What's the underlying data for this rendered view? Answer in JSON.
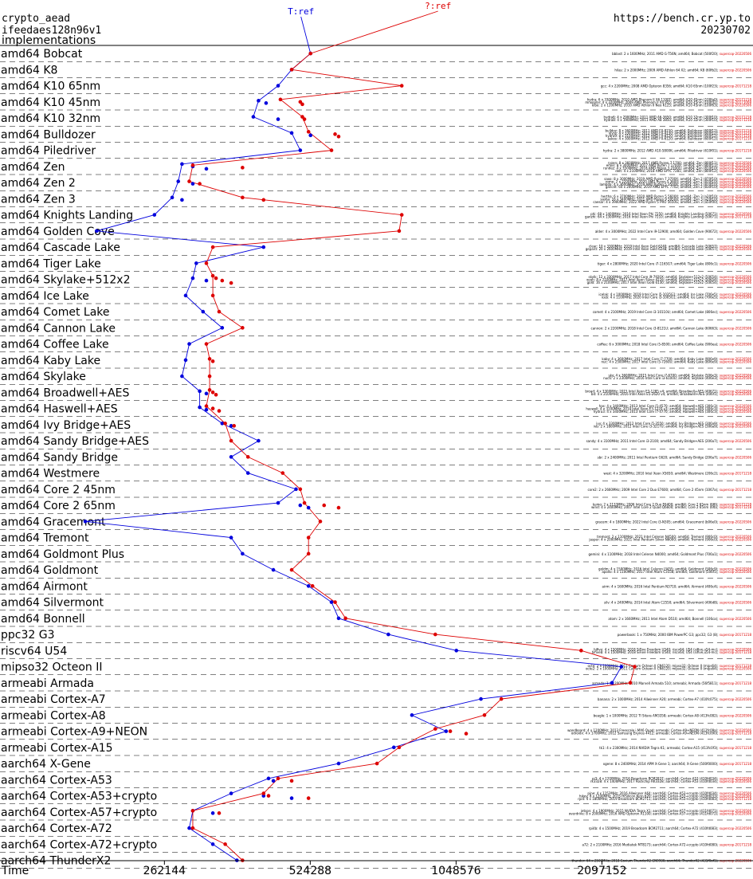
{
  "header": {
    "line1": "crypto_aead",
    "line2": "ifeedaes128n96v1",
    "line3": "implementations",
    "url": "https://bench.cr.yp.to",
    "date": "20230702"
  },
  "colors": {
    "blue": "#0000dd",
    "red": "#dd0000",
    "text": "#000000"
  },
  "chart_data": {
    "type": "line",
    "xlabel": "Time",
    "x_scale": "log2",
    "xlim": [
      120000,
      4300000
    ],
    "ticks": [
      262144,
      524288,
      1048576,
      2097152
    ],
    "tick_labels": [
      "262144",
      "524288",
      "1048576",
      "2097152"
    ],
    "series": [
      {
        "name": "T:ref",
        "color": "#0000dd"
      },
      {
        "name": "?:ref",
        "color": "#dd0000"
      }
    ],
    "categories": [
      {
        "label": "amd64 Bobcat",
        "blue": [
          525000
        ],
        "red": [
          525000
        ],
        "notes": [
          "bblast: 2 x 1600MHz; 2011 AMD G-T56N; amd64; Bobcat (500f20); supercop-20220506"
        ]
      },
      {
        "label": "amd64 K8",
        "blue": [
          480000
        ],
        "red": [
          480000
        ],
        "notes": [
          "hilas: 2 x 2000MHz; 2009 AMD Athlon 64 X2; amd64; K8 (60fb2); supercop-20220506"
        ]
      },
      {
        "label": "amd64 K10 65nm",
        "blue": [
          450000
        ],
        "red": [
          810000
        ],
        "notes": [
          "gcc: 4 x 2200MHz; 2008 AMD Opteron 8356; amd64; K10 65nm (100f23); supercop-20171218"
        ]
      },
      {
        "label": "amd64 K10 45nm",
        "blue": [
          410000,
          425000
        ],
        "red": [
          455000,
          500000,
          505000
        ],
        "notes": [
          "hydra: 6 x 3300MHz; 2010 AMD Phenom II X6 1100T; amd64; K10 45nm (100fa0); supercop-20171218",
          "mnxoplar: 4 x 3200MHz; 2009 AMD Phenom II X4 955; amd64; K10 45nm (100f42); supercop-20171008",
          "kibo: 2 x 1200MHz; 2010 AMD Athlon II Neo K125; amd64; K10 45nm (100f63); supercop-20220506"
        ]
      },
      {
        "label": "amd64 K10 32nm",
        "blue": [
          400000,
          450000
        ],
        "red": [
          505000,
          510000
        ],
        "notes": [
          "hydra6: 4 x 2900MHz; 2011 AMD A6-3650; amd64; K10 32nm (300f10); supercop-20171218",
          "hydra8: 4 x 1900MHz; 2011 AMD A8 3850; amd64; K10 32nm (300f10); supercop-20171218"
        ]
      },
      {
        "label": "amd64 Bulldozer",
        "blue": [
          480000,
          525000
        ],
        "red": [
          520000,
          590000,
          600000
        ],
        "notes": [
          "bulldoz: 8 x 3600MHz; 2011 AMD FX-8150; amd64; Bulldozer (600f12); supercop-20171218",
          "ulyss: 4 x 3300MHz; 2012 AMD FX-4130; amd64; Bulldozer (600f12); supercop-20171218",
          "hydra9: 8 x 3100MHz; 2012 AMD FX-8120; amd64; Bulldozer (600f12); supercop-20171218",
          "askos: 4 x 3000MHz; 2012 AMD FX-6120; amd64; Bulldozer (600f12); supercop-20171218"
        ]
      },
      {
        "label": "amd64 Piledriver",
        "blue": [
          500000
        ],
        "red": [
          580000
        ],
        "notes": [
          "hydra: 2 x 3800MHz; 2012 AMD A10-5800K; amd64; Piledriver (610f01); supercop-20171218"
        ]
      },
      {
        "label": "amd64 Zen",
        "blue": [
          285000,
          300000,
          320000
        ],
        "red": [
          300000,
          380000
        ],
        "notes": [
          "ryzen: 8 x 3600MHz; 2017 AMD Ryzen 7 1700; amd64; Zen (800f11); supercop-20220506",
          "enxis: 8 x 3000MHz; 2017 AMD Ryzen 7 1700X; amd64; Zen (800f11); supercop-20220506",
          "rundez: 4 x 3500MHz; 2018 AMD Ryzen 3 2200G; amd64; Zen (810f10); supercop-20220506",
          "delt: 4 x 2100MHz; 2018 AMD EPYC 7281; amd64; Zen (800f12); supercop-20220506"
        ]
      },
      {
        "label": "amd64 Zen 2",
        "blue": [
          280000,
          300000
        ],
        "red": [
          295000,
          310000
        ],
        "notes": [
          "saxo: 8 x 3000MHz; 2019 AMD Ryzen 7 3700X; amd64; Zen 2 (870f10); supercop-20220506",
          "rome: 2 x 2200MHz; 2020 AMD Ryzen 5 3600; amd64; Zen 2 (870f10); supercop-20220506",
          "lambda: 4 x 3600MHz; 2019 AMD Ryzen 5 3500X; amd64; Zen 2 (870f10); supercop-20220506",
          "gancet: 64 x 2000MHz; 2019 AMD EPYC 7702; amd64; Zen 2 (830f10); supercop-20220506"
        ]
      },
      {
        "label": "amd64 Zen 3",
        "blue": [
          272000,
          285000
        ],
        "red": [
          380000,
          420000
        ],
        "notes": [
          "hertha: 6 x 3700MHz; 2020 AMD Ryzen 5 5600X; amd64; Zen 3 (a20f10); supercop-20220506",
          "sasha: 16 x 3400MHz; 2021 AMD Ryzen 9 5950X; amd64; Zen 3 (a20f10); supercop-20220506",
          "caesar: 4 x 3900MHz; 2022 AMD Ryzen 5 PRO 5650G; amd64; Zen 3 (a50f00); supercop-20220506"
        ]
      },
      {
        "label": "amd64 Knights Landing",
        "blue": [
          250000
        ],
        "red": [
          810000
        ],
        "notes": [
          "phi: 68 x 1400MHz; 2016 Intel Xeon Phi 7250; amd64; Knights Landing (50671); supercop-20220506",
          "ganzhi: 64 x 1300MHz; 2016 Intel Xeon Phi 7210; amd64; Knights Landing (50671); supercop-20171218"
        ]
      },
      {
        "label": "amd64 Golden Cove",
        "blue": [
          190000
        ],
        "red": [
          800000
        ],
        "notes": [
          "alder: 4 x 3000MHz; 2022 Intel Core i9-12900; amd64; Golden Cove (90672); supercop-20220506"
        ]
      },
      {
        "label": "amd64 Cascade Lake",
        "blue": [
          420000
        ],
        "red": [
          330000
        ],
        "notes": [
          "clear: 10 x 3300MHz; 2019 Intel Xeon Gold 6240; amd64; Cascade Lake (50657); supercop-20220506",
          "gepard: 20 x 2600MHz; 2019 Intel Xeon Gold 6248; amd64; Cascade Lake (50657); supercop-20220506"
        ]
      },
      {
        "label": "amd64 Tiger Lake",
        "blue": [
          305000
        ],
        "red": [
          320000
        ],
        "notes": [
          "tiger: 4 x 2800MHz; 2020 Intel Core i7-1165G7; amd64; Tiger Lake (806c1); supercop-20220506"
        ]
      },
      {
        "label": "amd64 Skylake+512x2",
        "blue": [
          300000,
          320000
        ],
        "red": [
          330000,
          335000,
          345000,
          360000
        ],
        "notes": [
          "skylk: 12 x 3300MHz; 2017 Intel Core i9-7920X; amd64; Skylake+512x2 (50654); supercop-20220506",
          "xeon: 8 x 2100MHz; 2017 Intel Xeon Silver 4116; amd64; Skylake+512x2 (50654); supercop-20220506",
          "gold: 16 x 2100MHz; 2017 Intel Xeon Gold 6130; amd64; Skylake+512x2 (50654); supercop-20220506"
        ]
      },
      {
        "label": "amd64 Ice Lake",
        "blue": [
          290000
        ],
        "red": [
          330000
        ],
        "notes": [
          "icelak: 4 x 1000MHz; 2019 Intel Core i5-1035G1; amd64; Ice Lake (706e5); supercop-20220506",
          "iceb: 4 x 1100MHz; 2020 Intel Core i3-1005G1; amd64; Ice Lake (706e5); supercop-20220506"
        ]
      },
      {
        "label": "amd64 Comet Lake",
        "blue": [
          315000
        ],
        "red": [
          340000
        ],
        "notes": [
          "comet: 4 x 2100MHz; 2019 Intel Core i3-10110U; amd64; Comet Lake (806ec); supercop-20220506"
        ]
      },
      {
        "label": "amd64 Cannon Lake",
        "blue": [
          345000
        ],
        "red": [
          380000
        ],
        "notes": [
          "cannon: 2 x 2200MHz; 2018 Intel Core i3-8121U; amd64; Cannon Lake (60663); supercop-20220506"
        ]
      },
      {
        "label": "amd64 Coffee Lake",
        "blue": [
          295000
        ],
        "red": [
          320000
        ],
        "notes": [
          "coffee: 6 x 3000MHz; 2018 Intel Core i5-8500; amd64; Coffee Lake (906ea); supercop-20220506"
        ]
      },
      {
        "label": "amd64 Kaby Lake",
        "blue": [
          290000
        ],
        "red": [
          325000,
          330000
        ],
        "notes": [
          "kaby: 4 x 3600MHz; 2017 Intel Core i7-7700; amd64; Kaby Lake (906e9); supercop-20220506",
          "nuc: 4 x 2500MHz; 2017 Intel Core i5-7260U; amd64; Kaby Lake (806e9); supercop-20220506"
        ]
      },
      {
        "label": "amd64 Skylake",
        "blue": [
          285000
        ],
        "red": [
          325000
        ],
        "notes": [
          "sky: 4 x 3600MHz; 2015 Intel Core i7-6700; amd64; Skylake (506e3); supercop-20220506",
          "nuc6: 2 x 2300MHz; 2016 Intel Core i3-6100U; amd64; Skylake (406e3); supercop-20220506"
        ]
      },
      {
        "label": "amd64 Broadwell+AES",
        "blue": [
          310000,
          320000
        ],
        "red": [
          325000,
          330000,
          335000
        ],
        "notes": [
          "broad: 4 x 3300MHz; 2015 Intel Xeon E3-1285 v4; amd64; Broadwell+AES (40671); supercop-20220506",
          "bd: 4 x 2100MHz; 2016 Intel Xeon E5-2620 v4; amd64; Broadwell+AES (406f1); supercop-20220506"
        ]
      },
      {
        "label": "amd64 Haswell+AES",
        "blue": [
          310000,
          320000
        ],
        "red": [
          320000,
          330000,
          340000
        ],
        "notes": [
          "has: 4 x 3400MHz; 2013 Intel Core i5-4570; amd64; Haswell+AES (306c3); supercop-20220506",
          "haswell: 4 x 3100MHz; 2014 Intel Xeon E3-1220 v3; amd64; Haswell+AES (306c3); supercop-20220506",
          "hydra3: 4 x 3400MHz; 2013 Intel Core i7-4770; amd64; Haswell+AES (306c3); supercop-20220506"
        ]
      },
      {
        "label": "amd64 Ivy Bridge+AES",
        "blue": [
          345000,
          360000
        ],
        "red": [
          350000,
          365000
        ],
        "notes": [
          "ivy: 4 x 3300MHz; 2012 Intel Core i5-3550; amd64; Ivy Bridge+AES (306a9); supercop-20220506",
          "ivb: 2 x 1800MHz; 2012 Intel Core i3-3217U; amd64; Ivy Bridge+AES (306a9); supercop-20220506"
        ]
      },
      {
        "label": "amd64 Sandy Bridge+AES",
        "blue": [
          410000
        ],
        "red": [
          360000
        ],
        "notes": [
          "sandy: 4 x 3100MHz; 2011 Intel Core i3-2100; amd64; Sandy Bridge+AES (206a7); supercop-20220506"
        ]
      },
      {
        "label": "amd64 Sandy Bridge",
        "blue": [
          360000
        ],
        "red": [
          390000
        ],
        "notes": [
          "sbr: 2 x 2400MHz; 2011 Intel Pentium G620; amd64; Sandy Bridge (206a7); supercop-20220506"
        ]
      },
      {
        "label": "amd64 Westmere",
        "blue": [
          390000
        ],
        "red": [
          460000
        ],
        "notes": [
          "west: 4 x 3200MHz; 2010 Intel Xeon X5650; amd64; Westmere (206c2); supercop-20171218"
        ]
      },
      {
        "label": "amd64 Core 2 45nm",
        "blue": [
          490000
        ],
        "red": [
          500000
        ],
        "notes": [
          "core2: 2 x 2660MHz; 2009 Intel Core 2 Duo E7600; amd64; Core 2 45nm (1067a); supercop-20171218"
        ]
      },
      {
        "label": "amd64 Core 2 65nm",
        "blue": [
          450000,
          500000,
          520000
        ],
        "red": [
          510000,
          560000,
          600000
        ],
        "notes": [
          "kumo: 2 x 2133MHz; 2006 Intel Core 2 Duo E6400; amd64; Core 2 65nm (6f6); supercop-20171218",
          "wind: 4 x 2400MHz; 2007 Intel Core 2 Quad Q6600; amd64; Core 2 65nm (6fb); supercop-20171218"
        ]
      },
      {
        "label": "amd64 Gracemont",
        "blue": [
          180000
        ],
        "red": [
          550000
        ],
        "notes": [
          "gracem: 4 x 1800MHz; 2022 Intel Core i3-N305; amd64; Gracemont (b06e0); supercop-20220506"
        ]
      },
      {
        "label": "amd64 Tremont",
        "blue": [
          360000
        ],
        "red": [
          520000
        ],
        "notes": [
          "tremont: 2 x 1100MHz; 2021 Intel Celeron N4500; amd64; Tremont (906c0); supercop-20220506",
          "jasper: 4 x 2000MHz; 2021 Intel Pentium Silver N6000; amd64; Tremont (906c0); supercop-20220506"
        ]
      },
      {
        "label": "amd64 Goldmont Plus",
        "blue": [
          380000
        ],
        "red": [
          520000
        ],
        "notes": [
          "gemini: 4 x 1100MHz; 2018 Intel Celeron N4000; amd64; Goldmont Plus (706a1); supercop-20220506"
        ]
      },
      {
        "label": "amd64 Goldmont",
        "blue": [
          440000
        ],
        "red": [
          480000
        ],
        "notes": [
          "goldm: 4 x 1500MHz; 2016 Intel Celeron J3455; amd64; Goldmont (506c9); supercop-20220506",
          "apollo: 4 x 1100MHz; 2017 Intel Atom C3558; amd64; Goldmont (506f1); supercop-20220506"
        ]
      },
      {
        "label": "amd64 Airmont",
        "blue": [
          520000
        ],
        "red": [
          530000
        ],
        "notes": [
          "airm: 4 x 1600MHz; 2016 Intel Pentium N3710; amd64; Airmont (406c4); supercop-20220506"
        ]
      },
      {
        "label": "amd64 Silvermont",
        "blue": [
          580000
        ],
        "red": [
          590000
        ],
        "notes": [
          "silv: 4 x 2400MHz; 2014 Intel Atom C2550; amd64; Silvermont (406d8); supercop-20220506"
        ]
      },
      {
        "label": "amd64 Bonnell",
        "blue": [
          600000
        ],
        "red": [
          620000
        ],
        "notes": [
          "atom: 2 x 1660MHz; 2011 Intel Atom D510; amd64; Bonnell (106ca); supercop-20220506"
        ]
      },
      {
        "label": "ppc32 G3",
        "blue": [
          760000
        ],
        "red": [
          950000
        ],
        "notes": [
          "powerbook: 1 x 750MHz; 2000 IBM PowerPC G3; ppc32; G3 (8); supercop-20171218"
        ]
      },
      {
        "label": "riscv64 U54",
        "blue": [
          1050000
        ],
        "red": [
          1900000
        ],
        "notes": [
          "hifive: 4 x 1500MHz; 2018 SiFive Freedom U540; riscv64; U54 (sifive,u54-mc); supercop-20220506",
          "hifiveb: 4 x 1500MHz; 2018 SiFive Freedom U540; riscv64; U54 (sifive,u54-mc); supercop-20171218"
        ]
      },
      {
        "label": "mipso32 Octeon II",
        "blue": [
          2300000
        ],
        "red": [
          2450000
        ],
        "notes": [
          "octe: 2 x 1000MHz; 2011 Cavium Octeon II CN6120; mipso32; Octeon II (mips64); supercop-20171218",
          "octe2: 2 x 1000MHz; 2011 Cavium Octeon II CN6120; mipso32; Octeon II (mips64); supercop-20220506"
        ]
      },
      {
        "label": "armeabi Armada",
        "blue": [
          2200000
        ],
        "red": [
          2400000
        ],
        "notes": [
          "armada: 1 x 1200MHz; 2010 Marvell Armada 510; armeabi; Armada (56f5811); supercop-20171218"
        ]
      },
      {
        "label": "armeabi Cortex-A7",
        "blue": [
          1180000
        ],
        "red": [
          1300000
        ],
        "notes": [
          "banana: 2 x 1000MHz; 2014 Allwinner A20; armeabi; Cortex-A7 (410fc075); supercop-20220506"
        ]
      },
      {
        "label": "armeabi Cortex-A8",
        "blue": [
          850000
        ],
        "red": [
          1200000
        ],
        "notes": [
          "beagle: 1 x 1000MHz; 2012 TI Sitara AM3358; armeabi; Cortex-A8 (413fc082); supercop-20220506"
        ]
      },
      {
        "label": "armeabi Cortex-A9+NEON",
        "blue": [
          1000000
        ],
        "red": [
          950000,
          1020000,
          1100000
        ],
        "notes": [
          "wandboard: 4 x 1200MHz; 2013 Freescale i.MX6 Quad; armeabi; Cortex-A9+NEON (412fc09a); supercop-20220506",
          "odroidx: 4 x 1700MHz; 2012 Samsung Exynos 4412; armeabi; Cortex-A9+NEON (413fc090); supercop-20171218"
        ]
      },
      {
        "label": "armeabi Cortex-A15",
        "blue": [
          780000
        ],
        "red": [
          800000
        ],
        "notes": [
          "tk1: 4 x 2300MHz; 2014 NVIDIA Tegra K1; armeabi; Cortex-A15 (413fc0f3); supercop-20171218"
        ]
      },
      {
        "label": "aarch64 X-Gene",
        "blue": [
          600000
        ],
        "red": [
          720000
        ],
        "notes": [
          "xgene: 8 x 2400MHz; 2014 APM X-Gene 1; aarch64; X-Gene (500f0000); supercop-20171218"
        ]
      },
      {
        "label": "aarch64 Cortex-A53",
        "blue": [
          430000,
          440000
        ],
        "red": [
          450000,
          480000
        ],
        "notes": [
          "pi3: 4 x 1200MHz; 2016 Broadcom BCM2837; aarch64; Cortex-A53 (410fd034); supercop-20220506",
          "rk3328: 4 x 1400MHz; 2017 Rockchip RK3328; aarch64; Cortex-A53 (410fd034); supercop-20220506"
        ]
      },
      {
        "label": "aarch64 Cortex-A53+crypto",
        "blue": [
          360000,
          420000,
          480000
        ],
        "red": [
          420000,
          430000,
          520000
        ],
        "notes": [
          "pine: 4 x 1152MHz; 2016 Allwinner A64; aarch64; Cortex-A53+crypto (410fd034); supercop-20220506",
          "hikey: 8 x 1200MHz; 2015 HiSilicon Kirin 620; aarch64; Cortex-A53+crypto (410fd033); supercop-20220506",
          "rpi4: 4 x 1800MHz; 2019 Broadcom BCM2711; aarch64; Cortex-A53+crypto (410fd083); supercop-20171218"
        ]
      },
      {
        "label": "aarch64 Cortex-A57+crypto",
        "blue": [
          300000,
          330000
        ],
        "red": [
          300000,
          340000
        ],
        "notes": [
          "jetson: 4 x 1900MHz; 2015 NVIDIA Tegra X1; aarch64; Cortex-A57+crypto (411fd071); supercop-20220506",
          "overdrive: 8 x 2000MHz; 2016 AMD Opteron A1100; aarch64; Cortex-A57+crypto (411fd072); supercop-20220506"
        ]
      },
      {
        "label": "aarch64 Cortex-A72",
        "blue": [
          295000
        ],
        "red": [
          300000
        ],
        "notes": [
          "rpi4b: 4 x 1500MHz; 2019 Broadcom BCM2711; aarch64; Cortex-A72 (410fd083); supercop-20220506"
        ]
      },
      {
        "label": "aarch64 Cortex-A72+crypto",
        "blue": [
          330000
        ],
        "red": [
          350000
        ],
        "notes": [
          "a72: 2 x 2100MHz; 2016 Mediatek MT8173; aarch64; Cortex-A72+crypto (410fd080); supercop-20171218"
        ]
      },
      {
        "label": "aarch64 ThunderX2",
        "blue": [
          370000
        ],
        "red": [
          380000
        ],
        "notes": [
          "thunder: 64 x 2500MHz; 2018 Cavium ThunderX2 CN9980; aarch64; ThunderX2 (431f0af1); supercop-20220506"
        ]
      }
    ]
  }
}
